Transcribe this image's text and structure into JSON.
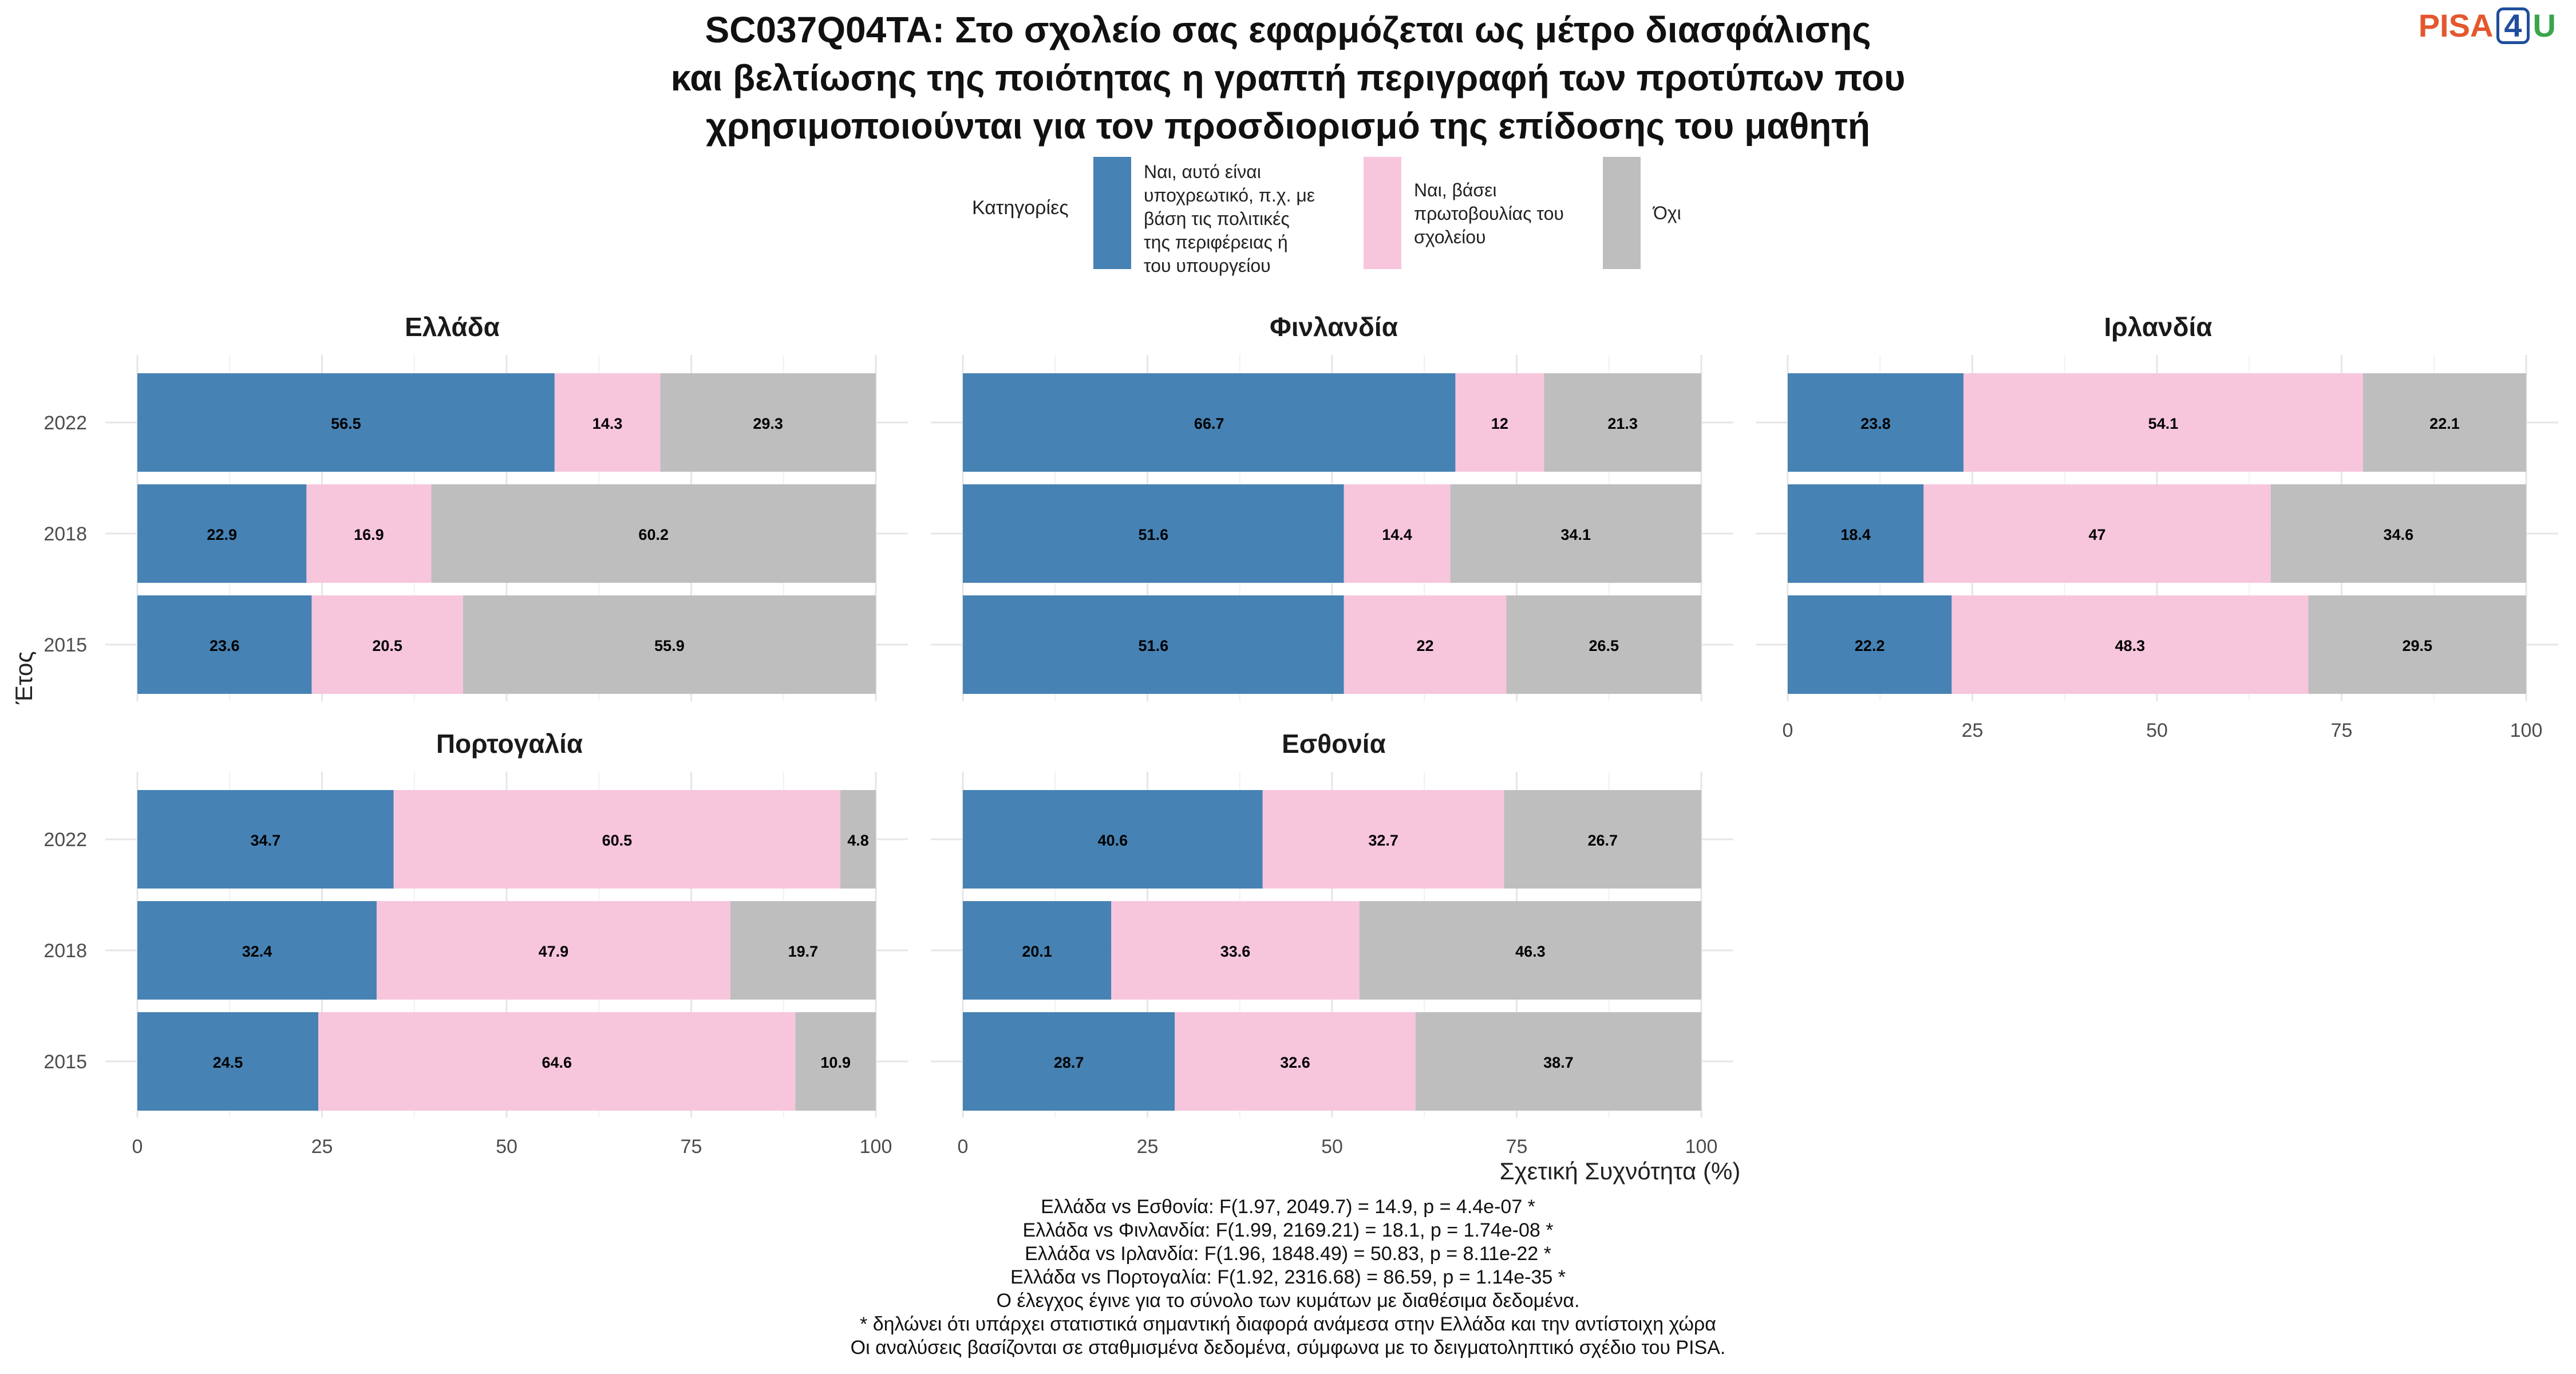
{
  "title_lines": [
    "SC037Q04TA: Στο σχολείο σας εφαρμόζεται ως μέτρο διασφάλισης",
    "και βελτίωσης της ποιότητας η γραπτή περιγραφή των προτύπων που",
    "χρησιμοποιούνται για τον προσδιορισμό της επίδοσης του μαθητή"
  ],
  "brand": {
    "pisa": "PISA",
    "num": "4",
    "u": "U"
  },
  "legend": {
    "title": "Κατηγορίες",
    "items": [
      {
        "lines": [
          "Ναι, αυτό είναι",
          "υποχρεωτικό, π.χ. με",
          "βάση τις πολιτικές",
          "της περιφέρειας ή",
          "του υπουργείου"
        ],
        "color": "#4682b4"
      },
      {
        "lines": [
          "Ναι, βάσει",
          "πρωτοβουλίας του",
          "σχολείου"
        ],
        "color": "#f7c6dc"
      },
      {
        "lines": [
          "Όχι"
        ],
        "color": "#bebebe"
      }
    ]
  },
  "chart_data": {
    "type": "bar",
    "orientation": "horizontal",
    "stacked": true,
    "xlabel": "Σχετική Συχνότητα (%)",
    "ylabel": "Έτος",
    "xlim": [
      0,
      100
    ],
    "xticks": [
      0,
      25,
      50,
      75,
      100
    ],
    "years": [
      "2022",
      "2018",
      "2015"
    ],
    "series_colors": [
      "#4682b4",
      "#f7c6dc",
      "#bebebe"
    ],
    "facets": [
      {
        "name": "Ελλάδα",
        "color": "#1f77b4",
        "values": [
          [
            56.5,
            14.3,
            29.3
          ],
          [
            22.9,
            16.9,
            60.2
          ],
          [
            23.6,
            20.5,
            55.9
          ]
        ],
        "labels": [
          [
            "56.5",
            "14.3",
            "29.3"
          ],
          [
            "22.9",
            "16.9",
            "60.2"
          ],
          [
            "23.6",
            "20.5",
            "55.9"
          ]
        ]
      },
      {
        "name": "Φινλανδία",
        "color": "#2f8f2f",
        "values": [
          [
            66.7,
            12,
            21.3
          ],
          [
            51.6,
            14.4,
            34.1
          ],
          [
            51.6,
            22,
            26.5
          ]
        ],
        "labels": [
          [
            "66.7",
            "12",
            "21.3"
          ],
          [
            "51.6",
            "14.4",
            "34.1"
          ],
          [
            "51.6",
            "22",
            "26.5"
          ]
        ]
      },
      {
        "name": "Ιρλανδία",
        "color": "#7a4a1e",
        "values": [
          [
            23.8,
            54.1,
            22.1
          ],
          [
            18.4,
            47,
            34.6
          ],
          [
            22.2,
            48.3,
            29.5
          ]
        ],
        "labels": [
          [
            "23.8",
            "54.1",
            "22.1"
          ],
          [
            "18.4",
            "47",
            "34.6"
          ],
          [
            "22.2",
            "48.3",
            "29.5"
          ]
        ]
      },
      {
        "name": "Πορτογαλία",
        "color": "#e8a317",
        "values": [
          [
            34.7,
            60.5,
            4.8
          ],
          [
            32.4,
            47.9,
            19.7
          ],
          [
            24.5,
            64.6,
            10.9
          ]
        ],
        "labels": [
          [
            "34.7",
            "60.5",
            "4.8"
          ],
          [
            "32.4",
            "47.9",
            "19.7"
          ],
          [
            "24.5",
            "64.6",
            "10.9"
          ]
        ]
      },
      {
        "name": "Εσθονία",
        "color": "#d62728",
        "values": [
          [
            40.6,
            32.7,
            26.7
          ],
          [
            20.1,
            33.6,
            46.3
          ],
          [
            28.7,
            32.6,
            38.7
          ]
        ],
        "labels": [
          [
            "40.6",
            "32.7",
            "26.7"
          ],
          [
            "20.1",
            "33.6",
            "46.3"
          ],
          [
            "28.7",
            "32.6",
            "38.7"
          ]
        ]
      }
    ]
  },
  "footer_lines": [
    "Ελλάδα vs Εσθονία: F(1.97, 2049.7) = 14.9, p = 4.4e-07 *",
    "Ελλάδα vs Φινλανδία: F(1.99, 2169.21) = 18.1, p = 1.74e-08 *",
    "Ελλάδα vs Ιρλανδία: F(1.96, 1848.49) = 50.83, p = 8.11e-22 *",
    "Ελλάδα vs Πορτογαλία: F(1.92, 2316.68) = 86.59, p = 1.14e-35 *",
    "Ο έλεγχος έγινε για το σύνολο των κυμάτων με διαθέσιμα δεδομένα.",
    "* δηλώνει ότι υπάρχει στατιστικά σημαντική διαφορά ανάμεσα στην Ελλάδα και την αντίστοιχη χώρα",
    "Οι αναλύσεις βασίζονται σε σταθμισμένα δεδομένα, σύμφωνα με το δειγματοληπτικό σχέδιο του PISA."
  ]
}
